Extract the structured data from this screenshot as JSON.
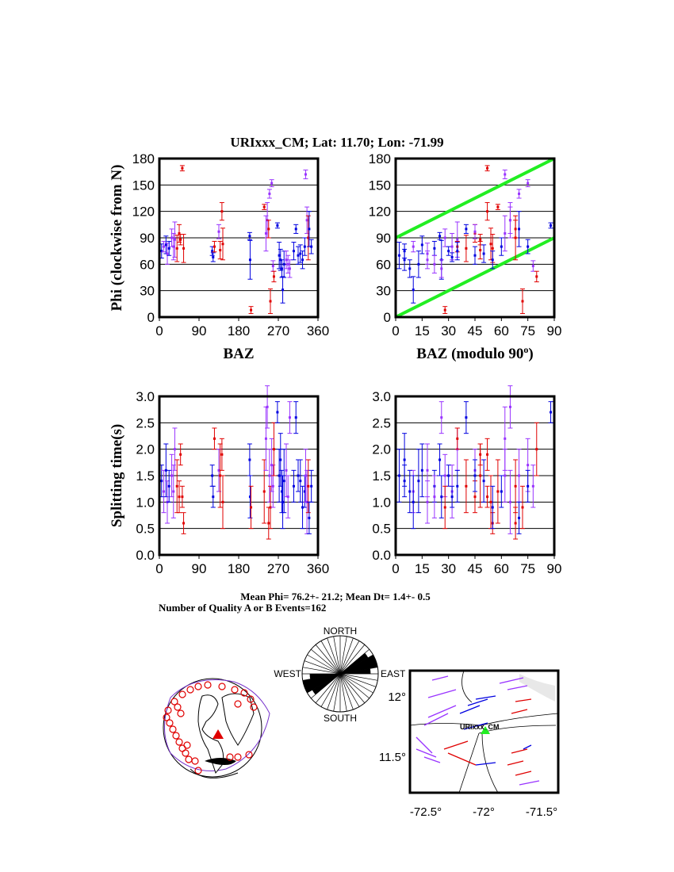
{
  "title": "URIxxx_CM; Lat:  11.70;  Lon:  -71.99",
  "summary": {
    "mean_line": "Mean Phi= 76.2+- 21.2; Mean Dt=  1.4+-  0.5",
    "count_line": "Number of Quality A or B Events=162"
  },
  "colors": {
    "red": "#e00000",
    "purple": "#9933ff",
    "blue": "#0000e0",
    "green": "#22ee22"
  },
  "chart_data": [
    {
      "type": "scatter",
      "panel": "phi-vs-baz",
      "title": "",
      "xlabel": "BAZ",
      "ylabel": "Phi (clockwise from N)",
      "xlim": [
        0,
        360
      ],
      "ylim": [
        0,
        180
      ],
      "xticks": [
        "0",
        "90",
        "180",
        "270",
        "360"
      ],
      "yticks": [
        "0",
        "30",
        "60",
        "90",
        "120",
        "150",
        "180"
      ],
      "grid": true
    },
    {
      "type": "scatter",
      "panel": "phi-vs-baz-mod90",
      "xlabel": "BAZ (modulo 90",
      "xlabel_sup": "o",
      "xlabel_end": ")",
      "ylabel": "",
      "xlim": [
        0,
        90
      ],
      "ylim": [
        0,
        180
      ],
      "xticks": [
        "0",
        "15",
        "30",
        "45",
        "60",
        "75",
        "90"
      ],
      "yticks": [
        "0",
        "30",
        "60",
        "90",
        "120",
        "150",
        "180"
      ],
      "grid": true,
      "reference_lines": [
        {
          "x": [
            0,
            90
          ],
          "y": [
            0,
            90
          ]
        },
        {
          "x": [
            0,
            90
          ],
          "y": [
            90,
            180
          ]
        }
      ]
    },
    {
      "type": "scatter",
      "panel": "dt-vs-baz",
      "xlabel": "",
      "ylabel": "Splitting time(s)",
      "xlim": [
        0,
        360
      ],
      "ylim": [
        0,
        3
      ],
      "xticks": [
        "0",
        "90",
        "180",
        "270",
        "360"
      ],
      "yticks": [
        "0.0",
        "0.5",
        "1.0",
        "1.5",
        "2.0",
        "2.5",
        "3.0"
      ],
      "grid": true
    },
    {
      "type": "scatter",
      "panel": "dt-vs-baz-mod90",
      "xlabel": "",
      "ylabel": "",
      "xlim": [
        0,
        90
      ],
      "ylim": [
        0,
        3
      ],
      "xticks": [
        "0",
        "15",
        "30",
        "45",
        "60",
        "75",
        "90"
      ],
      "yticks": [
        "0.0",
        "0.5",
        "1.0",
        "1.5",
        "2.0",
        "2.5",
        "3.0"
      ],
      "grid": true
    }
  ],
  "events": [
    {
      "baz": 5,
      "phi": 75,
      "pe": 8,
      "dt": 1.4,
      "de": 0.3,
      "c": "blue"
    },
    {
      "baz": 10,
      "phi": 80,
      "pe": 6,
      "dt": 1.2,
      "de": 0.4,
      "c": "purple"
    },
    {
      "baz": 15,
      "phi": 82,
      "pe": 10,
      "dt": 1.6,
      "de": 0.5,
      "c": "blue"
    },
    {
      "baz": 18,
      "phi": 72,
      "pe": 12,
      "dt": 1.0,
      "de": 0.4,
      "c": "purple"
    },
    {
      "baz": 22,
      "phi": 78,
      "pe": 8,
      "dt": 1.3,
      "de": 0.3,
      "c": "blue"
    },
    {
      "baz": 28,
      "phi": 90,
      "pe": 10,
      "dt": 1.5,
      "de": 0.4,
      "c": "purple"
    },
    {
      "baz": 32,
      "phi": 80,
      "pe": 15,
      "dt": 1.2,
      "de": 0.5,
      "c": "purple"
    },
    {
      "baz": 35,
      "phi": 88,
      "pe": 20,
      "dt": 2.0,
      "de": 0.4,
      "c": "purple"
    },
    {
      "baz": 40,
      "phi": 78,
      "pe": 15,
      "dt": 1.3,
      "de": 0.5,
      "c": "red"
    },
    {
      "baz": 45,
      "phi": 95,
      "pe": 10,
      "dt": 1.1,
      "de": 0.3,
      "c": "red"
    },
    {
      "baz": 48,
      "phi": 88,
      "pe": 6,
      "dt": 1.9,
      "de": 0.2,
      "c": "red"
    },
    {
      "baz": 52,
      "phi": 169,
      "pe": 3,
      "dt": 1.1,
      "de": 0.2,
      "c": "red"
    },
    {
      "baz": 55,
      "phi": 78,
      "pe": 16,
      "dt": 0.6,
      "de": 0.2,
      "c": "red"
    },
    {
      "baz": 120,
      "phi": 75,
      "pe": 5,
      "dt": 1.5,
      "de": 0.2,
      "c": "blue"
    },
    {
      "baz": 122,
      "phi": 68,
      "pe": 5,
      "dt": 1.1,
      "de": 0.2,
      "c": "blue"
    },
    {
      "baz": 125,
      "phi": 80,
      "pe": 6,
      "dt": 2.2,
      "de": 0.2,
      "c": "red"
    },
    {
      "baz": 135,
      "phi": 97,
      "pe": 8,
      "dt": 1.6,
      "de": 0.4,
      "c": "purple"
    },
    {
      "baz": 138,
      "phi": 76,
      "pe": 10,
      "dt": 1.5,
      "de": 0.6,
      "c": "red"
    },
    {
      "baz": 142,
      "phi": 120,
      "pe": 10,
      "dt": 1.9,
      "de": 0.3,
      "c": "red"
    },
    {
      "baz": 144,
      "phi": 83,
      "pe": 18,
      "dt": 1.0,
      "de": 0.5,
      "c": "red"
    },
    {
      "baz": 205,
      "phi": 92,
      "pe": 4,
      "dt": 1.8,
      "de": 0.3,
      "c": "blue"
    },
    {
      "baz": 206,
      "phi": 65,
      "pe": 22,
      "dt": 1.1,
      "de": 0.4,
      "c": "blue"
    },
    {
      "baz": 208,
      "phi": 8,
      "pe": 4,
      "dt": 0.9,
      "de": 0.4,
      "c": "red"
    },
    {
      "baz": 238,
      "phi": 125,
      "pe": 3,
      "dt": 1.2,
      "de": 0.6,
      "c": "red"
    },
    {
      "baz": 242,
      "phi": 95,
      "pe": 20,
      "dt": 2.2,
      "de": 0.6,
      "c": "purple"
    },
    {
      "baz": 245,
      "phi": 110,
      "pe": 20,
      "dt": 2.8,
      "de": 0.4,
      "c": "purple"
    },
    {
      "baz": 248,
      "phi": 100,
      "pe": 10,
      "dt": 0.6,
      "de": 0.3,
      "c": "red"
    },
    {
      "baz": 250,
      "phi": 140,
      "pe": 5,
      "dt": 1.5,
      "de": 0.5,
      "c": "purple"
    },
    {
      "baz": 252,
      "phi": 18,
      "pe": 14,
      "dt": 0.9,
      "de": 0.4,
      "c": "red"
    },
    {
      "baz": 255,
      "phi": 152,
      "pe": 4,
      "dt": 1.7,
      "de": 0.5,
      "c": "purple"
    },
    {
      "baz": 258,
      "phi": 58,
      "pe": 6,
      "dt": 1.3,
      "de": 0.4,
      "c": "purple"
    },
    {
      "baz": 260,
      "phi": 46,
      "pe": 6,
      "dt": 2.0,
      "de": 0.5,
      "c": "red"
    },
    {
      "baz": 268,
      "phi": 104,
      "pe": 3,
      "dt": 2.7,
      "de": 0.2,
      "c": "blue"
    },
    {
      "baz": 272,
      "phi": 70,
      "pe": 15,
      "dt": 1.5,
      "de": 0.5,
      "c": "blue"
    },
    {
      "baz": 275,
      "phi": 65,
      "pe": 12,
      "dt": 1.8,
      "de": 0.5,
      "c": "blue"
    },
    {
      "baz": 278,
      "phi": 55,
      "pe": 10,
      "dt": 1.2,
      "de": 0.4,
      "c": "blue"
    },
    {
      "baz": 280,
      "phi": 31,
      "pe": 15,
      "dt": 1.0,
      "de": 0.5,
      "c": "blue"
    },
    {
      "baz": 283,
      "phi": 60,
      "pe": 15,
      "dt": 1.4,
      "de": 0.6,
      "c": "blue"
    },
    {
      "baz": 288,
      "phi": 65,
      "pe": 10,
      "dt": 1.6,
      "de": 0.5,
      "c": "purple"
    },
    {
      "baz": 292,
      "phi": 60,
      "pe": 10,
      "dt": 1.1,
      "de": 0.4,
      "c": "purple"
    },
    {
      "baz": 296,
      "phi": 55,
      "pe": 10,
      "dt": 2.6,
      "de": 0.3,
      "c": "purple"
    },
    {
      "baz": 305,
      "phi": 75,
      "pe": 10,
      "dt": 1.3,
      "de": 0.3,
      "c": "blue"
    },
    {
      "baz": 310,
      "phi": 100,
      "pe": 5,
      "dt": 2.6,
      "de": 0.3,
      "c": "blue"
    },
    {
      "baz": 315,
      "phi": 70,
      "pe": 10,
      "dt": 1.5,
      "de": 0.3,
      "c": "blue"
    },
    {
      "baz": 320,
      "phi": 72,
      "pe": 10,
      "dt": 1.4,
      "de": 0.4,
      "c": "blue"
    },
    {
      "baz": 325,
      "phi": 65,
      "pe": 10,
      "dt": 0.9,
      "de": 0.4,
      "c": "blue"
    },
    {
      "baz": 330,
      "phi": 80,
      "pe": 10,
      "dt": 1.2,
      "de": 0.3,
      "c": "blue"
    },
    {
      "baz": 332,
      "phi": 162,
      "pe": 5,
      "dt": 1.5,
      "de": 0.5,
      "c": "purple"
    },
    {
      "baz": 335,
      "phi": 110,
      "pe": 15,
      "dt": 1.0,
      "de": 0.6,
      "c": "purple"
    },
    {
      "baz": 338,
      "phi": 90,
      "pe": 25,
      "dt": 1.3,
      "de": 0.5,
      "c": "red"
    },
    {
      "baz": 340,
      "phi": 100,
      "pe": 20,
      "dt": 0.7,
      "de": 0.3,
      "c": "blue"
    },
    {
      "baz": 345,
      "phi": 80,
      "pe": 8,
      "dt": 1.3,
      "de": 0.3,
      "c": "blue"
    }
  ],
  "rose": {
    "north": "NORTH",
    "south": "SOUTH",
    "east": "EAST",
    "west": "WEST",
    "dominant_azimuth_deg": 70
  },
  "map": {
    "station": "URIxxx_CM",
    "lat_ticks": [
      "12°",
      "11.5°"
    ],
    "lon_ticks": [
      "-72.5°",
      "-72°",
      "-71.5°"
    ]
  }
}
